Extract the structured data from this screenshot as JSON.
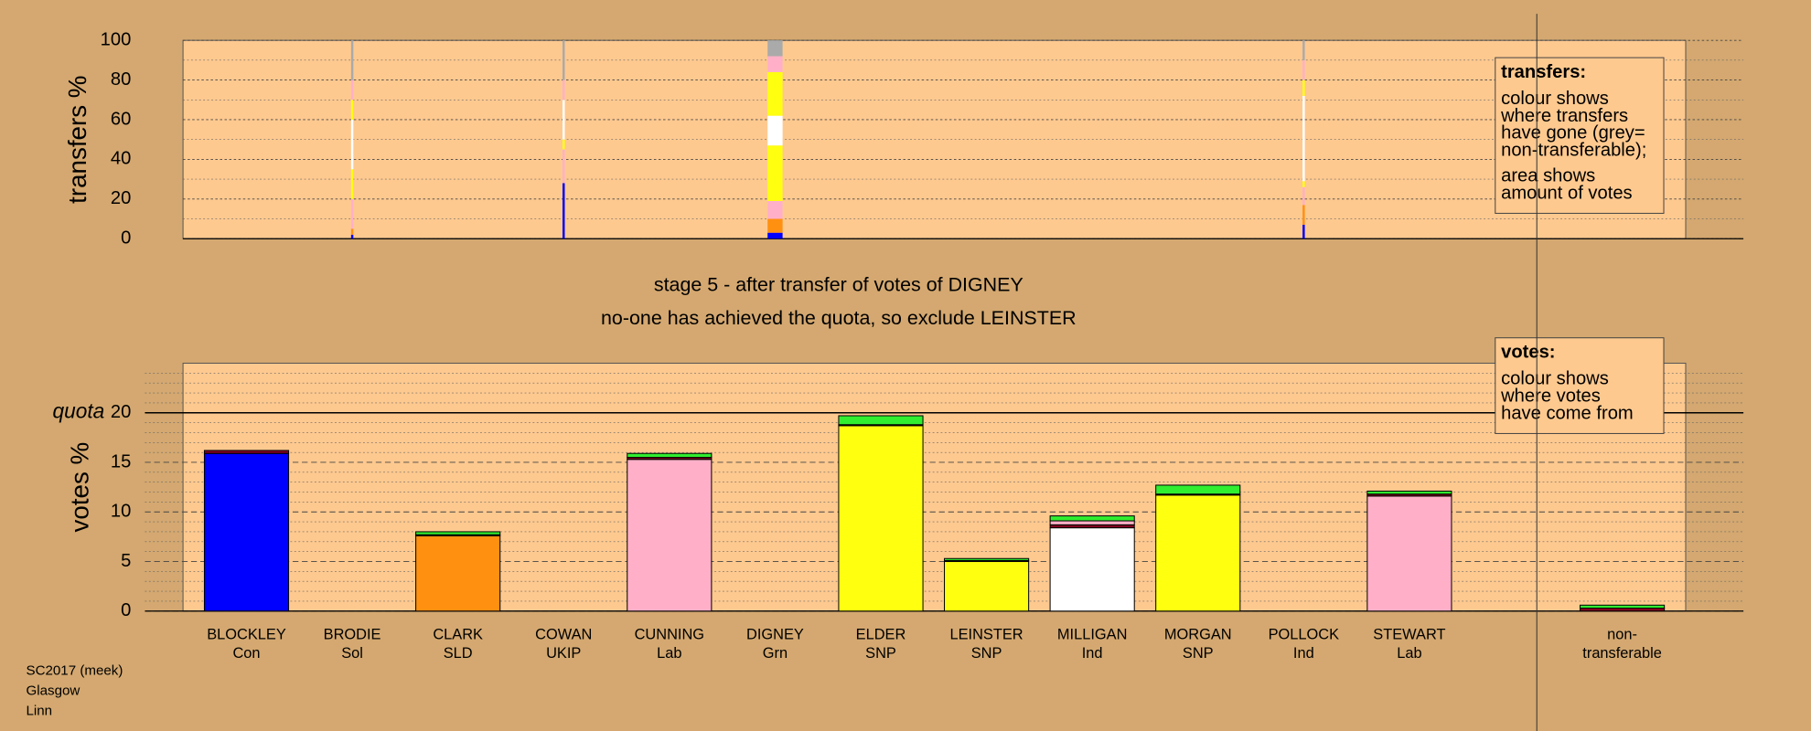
{
  "chart_data": [
    {
      "type": "stacked-bar",
      "ylabel": "transfers %",
      "ylim": [
        0,
        100
      ],
      "yticks": [
        0,
        20,
        40,
        60,
        80,
        100
      ],
      "grid": true,
      "amounts": [
        null,
        0.3,
        null,
        0.3,
        null,
        2.0,
        null,
        null,
        null,
        null,
        0.3,
        null
      ],
      "series": [
        {
          "color": "#0000ff",
          "values": [
            null,
            2,
            null,
            28,
            null,
            3,
            null,
            null,
            null,
            null,
            7,
            null
          ]
        },
        {
          "color": "#ff9010",
          "values": [
            null,
            3,
            null,
            0,
            null,
            7,
            null,
            null,
            null,
            null,
            10,
            null
          ]
        },
        {
          "color": "#ffb0c8",
          "values": [
            null,
            15,
            null,
            17,
            null,
            9,
            null,
            null,
            null,
            null,
            9,
            null
          ]
        },
        {
          "color": "#ffff10",
          "values": [
            null,
            15,
            null,
            5,
            null,
            28,
            null,
            null,
            null,
            null,
            3,
            null
          ]
        },
        {
          "color": "#ffffff",
          "values": [
            null,
            25,
            null,
            20,
            null,
            15,
            null,
            null,
            null,
            null,
            43,
            null
          ]
        },
        {
          "color": "#ffff10",
          "values": [
            null,
            10,
            null,
            0,
            null,
            22,
            null,
            null,
            null,
            null,
            8,
            null
          ]
        },
        {
          "color": "#ffb0c8",
          "values": [
            null,
            10,
            null,
            10,
            null,
            8,
            null,
            null,
            null,
            null,
            10,
            null
          ]
        },
        {
          "color": "#aaaaaa",
          "values": [
            null,
            20,
            null,
            20,
            null,
            8,
            null,
            null,
            null,
            null,
            10,
            null
          ]
        }
      ],
      "legend": {
        "title": "transfers:",
        "paragraphs": [
          [
            "colour shows",
            "where transfers",
            "have gone (grey=",
            "non-transferable);"
          ],
          [
            "area shows",
            "amount of votes"
          ]
        ]
      }
    },
    {
      "type": "stacked-bar",
      "ylabel": "votes %",
      "subtitle": [
        "stage 5 - after transfer of votes of DIGNEY",
        "no-one has achieved the quota, so exclude LEINSTER"
      ],
      "categories": [
        "BLOCKLEY",
        "BRODIE",
        "CLARK",
        "COWAN",
        "CUNNING",
        "DIGNEY",
        "ELDER",
        "LEINSTER",
        "MILLIGAN",
        "MORGAN",
        "POLLOCK",
        "STEWART",
        "non-"
      ],
      "parties": [
        "Con",
        "Sol",
        "SLD",
        "UKIP",
        "Lab",
        "Grn",
        "SNP",
        "SNP",
        "Ind",
        "SNP",
        "Ind",
        "Lab",
        "transferable"
      ],
      "ylim": [
        0,
        25
      ],
      "yticks": [
        0,
        5,
        10,
        15,
        20
      ],
      "grid": true,
      "quota": 20,
      "quota_label": "quota",
      "series": [
        {
          "color": "#0000ff",
          "values": [
            15.9,
            null,
            null,
            null,
            null,
            null,
            null,
            null,
            null,
            null,
            null,
            null,
            null
          ]
        },
        {
          "color": "#ff9010",
          "values": [
            null,
            null,
            7.6,
            null,
            null,
            null,
            null,
            null,
            null,
            null,
            null,
            null,
            null
          ]
        },
        {
          "color": "#ffb0c8",
          "values": [
            null,
            null,
            null,
            null,
            15.3,
            null,
            null,
            null,
            null,
            null,
            null,
            11.6,
            null
          ]
        },
        {
          "color": "#ffff10",
          "values": [
            null,
            null,
            null,
            null,
            null,
            null,
            18.7,
            5.0,
            null,
            11.7,
            null,
            null,
            null
          ]
        },
        {
          "color": "#ffffff",
          "values": [
            null,
            null,
            null,
            null,
            null,
            null,
            null,
            null,
            8.4,
            null,
            null,
            null,
            null
          ]
        },
        {
          "color": "#800020",
          "values": [
            0.3,
            null,
            0.1,
            null,
            0.2,
            null,
            0.1,
            0.1,
            0.3,
            0.1,
            null,
            0.2,
            0.3
          ]
        },
        {
          "color": "#ffb0c8",
          "values": [
            null,
            null,
            null,
            null,
            null,
            null,
            null,
            null,
            0.4,
            null,
            null,
            null,
            null
          ]
        },
        {
          "color": "#30ee30",
          "values": [
            null,
            null,
            0.3,
            null,
            0.4,
            null,
            0.9,
            0.2,
            0.5,
            0.9,
            null,
            0.3,
            0.3
          ]
        }
      ],
      "legend": {
        "title": "votes:",
        "paragraphs": [
          [
            "colour shows",
            "where votes",
            "have come from"
          ]
        ]
      }
    }
  ],
  "footer": [
    "SC2017 (meek)",
    "Glasgow",
    "Linn"
  ]
}
